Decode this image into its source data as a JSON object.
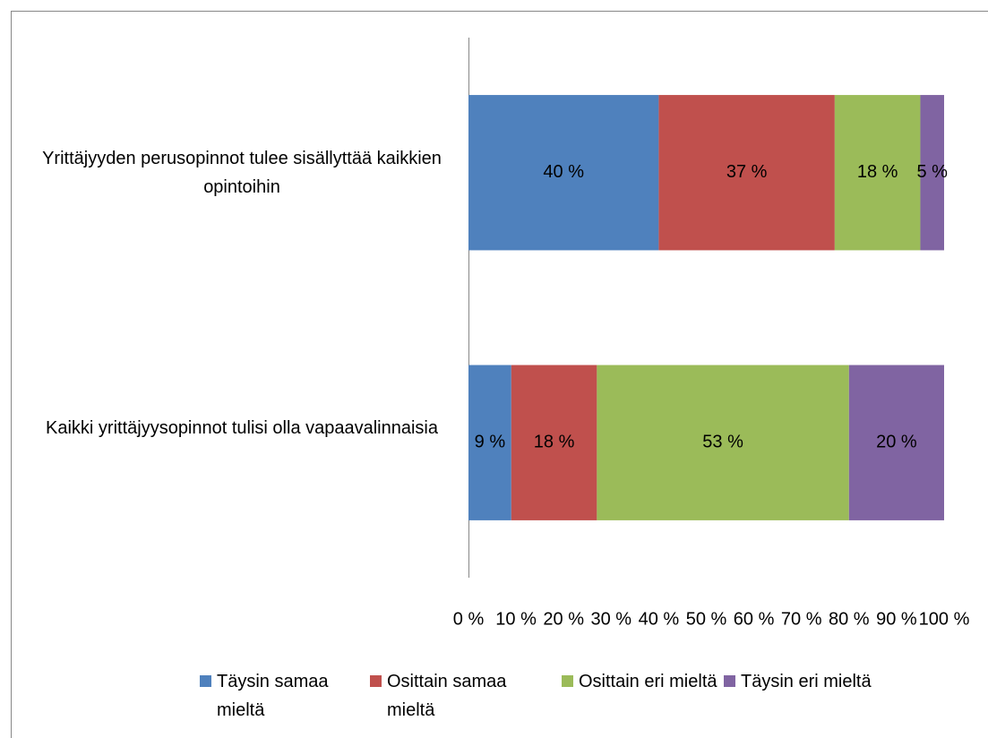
{
  "chart_data": {
    "type": "bar",
    "orientation": "horizontal",
    "stacked": true,
    "categories": [
      "Yrittäjyyden perusopinnot tulee sisällyttää kaikkien opintoihin",
      "Kaikki yrittäjyysopinnot tulisi olla vapaavalinnaisia"
    ],
    "series": [
      {
        "name": "Täysin samaa mieltä",
        "color": "#4f81bd",
        "values": [
          40,
          9
        ],
        "value_labels": [
          "40 %",
          "9 %"
        ]
      },
      {
        "name": "Osittain samaa mieltä",
        "color": "#c0504d",
        "values": [
          37,
          18
        ],
        "value_labels": [
          "37 %",
          "18 %"
        ]
      },
      {
        "name": "Osittain eri mieltä",
        "color": "#9bbb59",
        "values": [
          18,
          53
        ],
        "value_labels": [
          "18 %",
          "53 %"
        ]
      },
      {
        "name": "Täysin eri mieltä",
        "color": "#8064a2",
        "values": [
          5,
          20
        ],
        "value_labels": [
          "5 %",
          "20 %"
        ]
      }
    ],
    "xlim": [
      0,
      100
    ],
    "xticks": [
      {
        "value": 0,
        "label": "0 %"
      },
      {
        "value": 10,
        "label": "10 %"
      },
      {
        "value": 20,
        "label": "20 %"
      },
      {
        "value": 30,
        "label": "30 %"
      },
      {
        "value": 40,
        "label": "40 %"
      },
      {
        "value": 50,
        "label": "50 %"
      },
      {
        "value": 60,
        "label": "60 %"
      },
      {
        "value": 70,
        "label": "70 %"
      },
      {
        "value": 80,
        "label": "80 %"
      },
      {
        "value": 90,
        "label": "90 %"
      },
      {
        "value": 100,
        "label": "100 %"
      }
    ],
    "grid": false,
    "legend": "bottom"
  }
}
